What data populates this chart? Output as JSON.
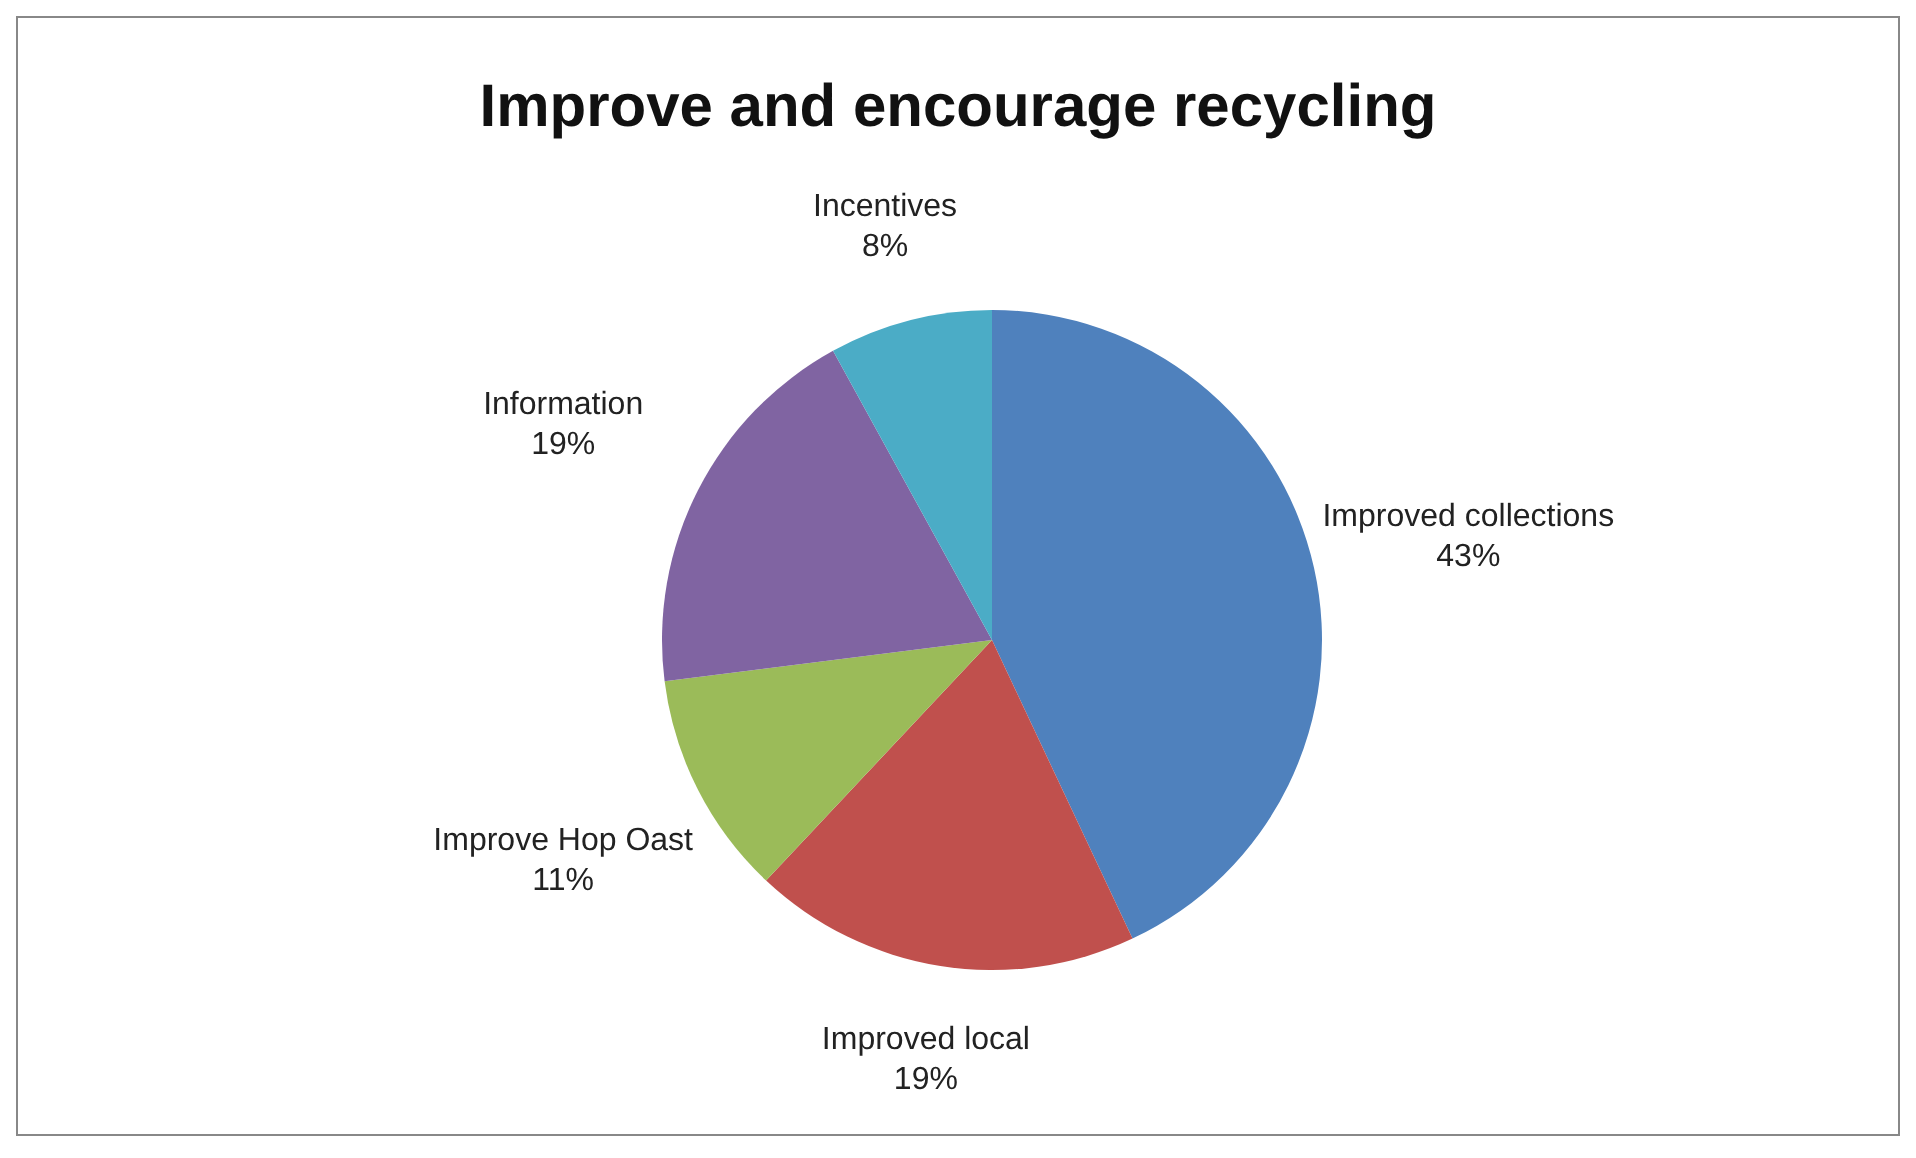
{
  "chart_data": {
    "type": "pie",
    "title": "Improve and encourage recycling",
    "categories": [
      "Improved collections",
      "Improved local",
      "Improve Hop Oast",
      "Information",
      "Incentives"
    ],
    "values": [
      43,
      19,
      11,
      19,
      8
    ],
    "colors": [
      "#4f81bd",
      "#c0504d",
      "#9bbb59",
      "#8064a2",
      "#4bacc6"
    ],
    "value_labels": [
      "43%",
      "19%",
      "11%",
      "19%",
      "8%"
    ],
    "legend": false
  }
}
